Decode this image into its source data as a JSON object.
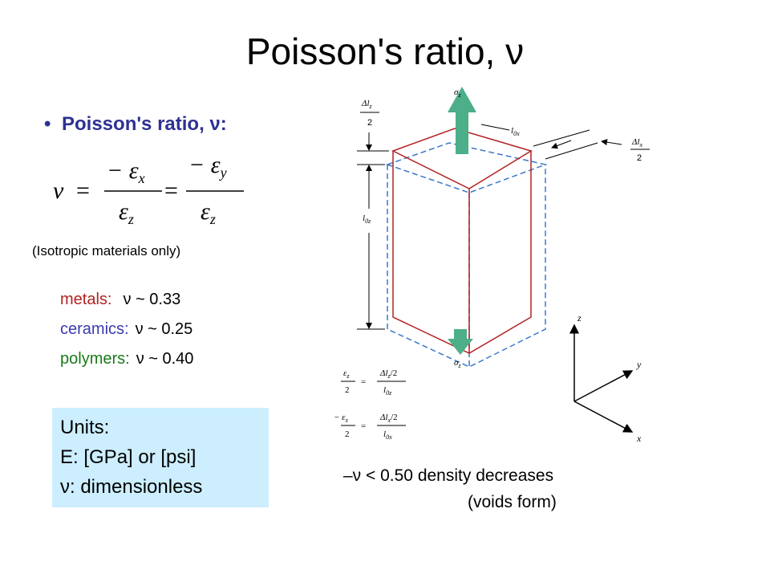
{
  "title": "Poisson's ratio, ν",
  "bullet": "Poisson's ratio, ν:",
  "formula": {
    "lhs": "ν",
    "eq1": "=",
    "frac1": {
      "num": "− ε",
      "num_sub": "x",
      "den": "ε",
      "den_sub": "z"
    },
    "eq2": "=",
    "frac2": {
      "num": "− ε",
      "num_sub": "y",
      "den": "ε",
      "den_sub": "z"
    }
  },
  "note": "(Isotropic materials only)",
  "materials": [
    {
      "name": "metals:",
      "value": "ν ~ 0.33"
    },
    {
      "name": "ceramics:",
      "value": "ν ~ 0.25"
    },
    {
      "name": "polymers:",
      "value": "ν ~ 0.40"
    }
  ],
  "units": [
    "Units:",
    "E:  [GPa] or [psi]",
    "ν:  dimensionless"
  ],
  "limit": [
    "–ν < 0.50  density decreases",
    "(voids form)"
  ],
  "diagram": {
    "sigma_top": {
      "symbol": "σ",
      "sub": "z"
    },
    "sigma_bottom": {
      "symbol": "σ",
      "sub": "z"
    },
    "dlz_num": "Δl",
    "dlz_sub": "z",
    "dlz_den": "2",
    "l0x": "l",
    "l0x_sub": "0x",
    "dlx_num": "Δl",
    "dlx_sub": "x",
    "dlx_den": "2",
    "l0z": "l",
    "l0z_sub": "0z",
    "axes": [
      "z",
      "y",
      "x"
    ],
    "eq1": {
      "lhs": "ε",
      "lhs_sub": "z",
      "lhs_den": "2",
      "eq": "=",
      "num": "Δl",
      "num_sub": "z",
      "num_tail": "/2",
      "den": "l",
      "den_sub": "0z"
    },
    "eq2": {
      "lhs": "− ε",
      "lhs_sub": "x",
      "lhs_den": "2",
      "eq": "=",
      "num": "Δl",
      "num_sub": "x",
      "num_tail": "/2",
      "den": "l",
      "den_sub": "0x"
    }
  }
}
